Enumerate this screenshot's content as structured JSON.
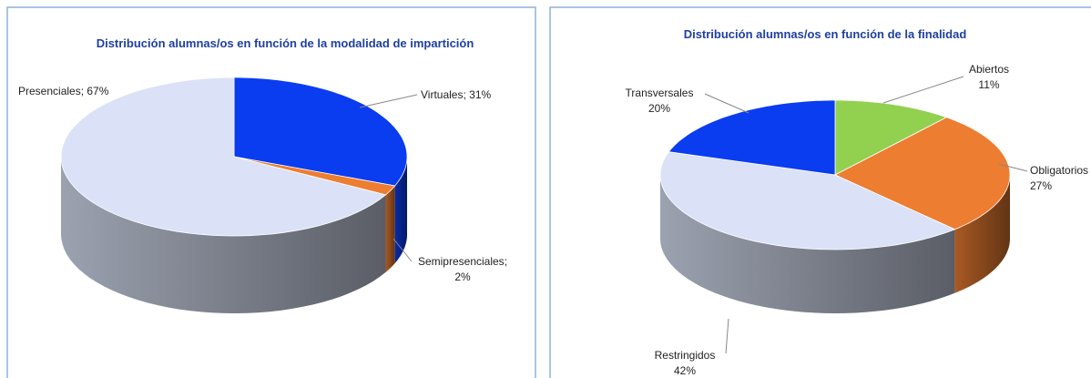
{
  "chart_data": [
    {
      "type": "pie",
      "title": "Distribución alumnas/os en función de la modalidad de impartición",
      "categories": [
        "Virtuales",
        "Semipresenciales",
        "Presenciales"
      ],
      "values": [
        31,
        2,
        67
      ],
      "value_labels": [
        "31%",
        "2%",
        "67%"
      ],
      "label_separator": "; ",
      "colors": [
        "#0a3cf0",
        "#ed7d31",
        "#dbe2f7"
      ]
    },
    {
      "type": "pie",
      "title": "Distribución alumnas/os en función de la finalidad",
      "categories": [
        "Abiertos",
        "Obligatorios",
        "Restringidos",
        "Transversales"
      ],
      "values": [
        11,
        27,
        42,
        20
      ],
      "value_labels": [
        "11%",
        "27%",
        "42%",
        "20%"
      ],
      "colors": [
        "#92d050",
        "#ed7d31",
        "#dbe2f7",
        "#0a3cf0"
      ]
    }
  ]
}
